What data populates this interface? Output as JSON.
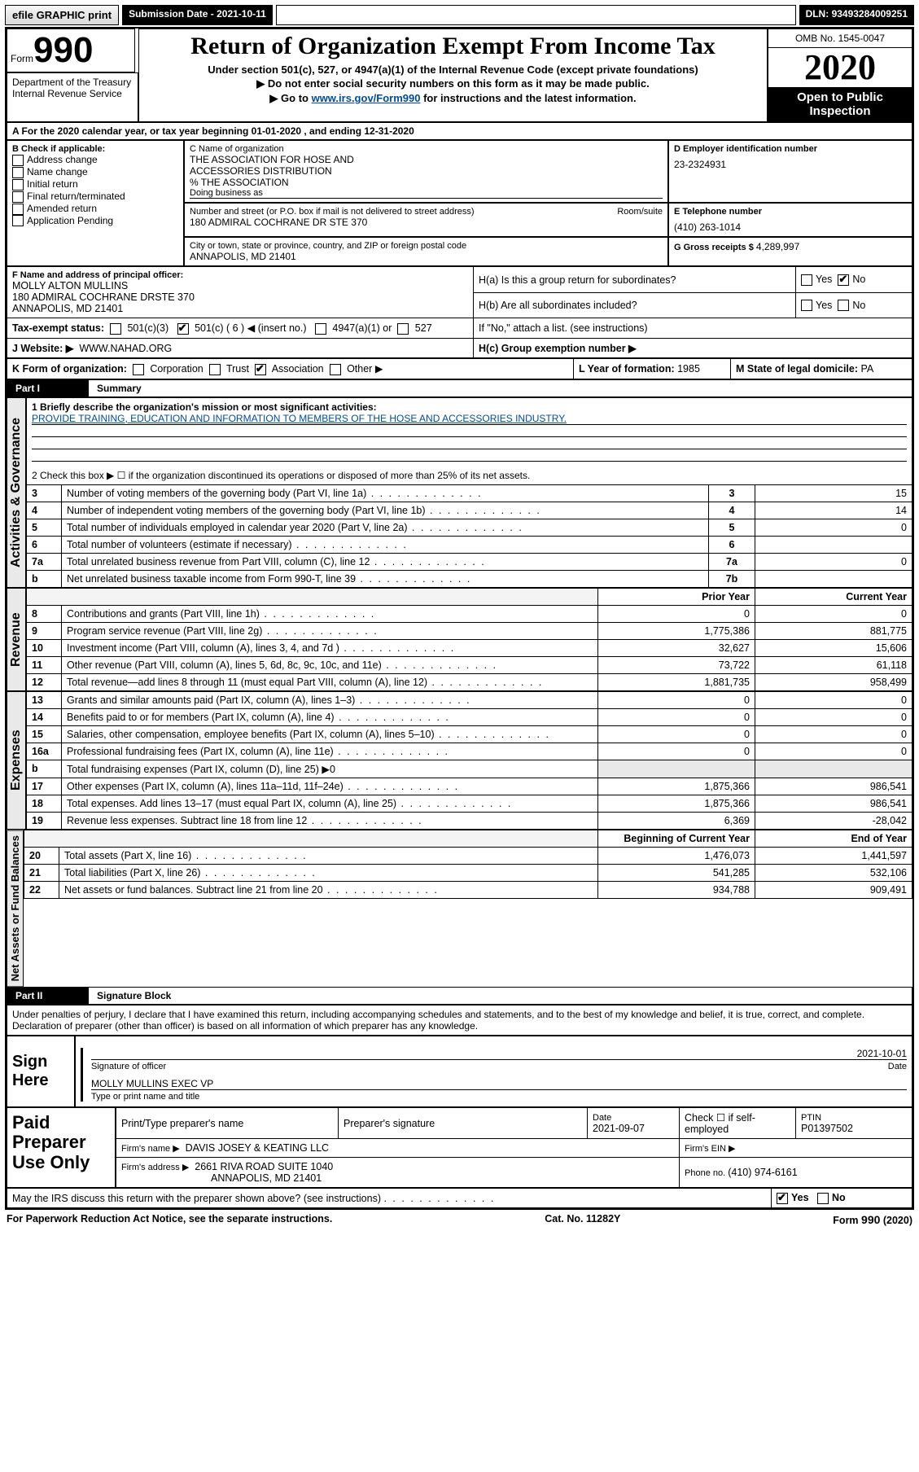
{
  "topbar": {
    "efile": "efile GRAPHIC print",
    "submission_label": "Submission Date - ",
    "submission_date": "2021-10-11",
    "dln_label": "DLN: ",
    "dln": "93493284009251"
  },
  "header": {
    "form_prefix": "Form",
    "form_number": "990",
    "title": "Return of Organization Exempt From Income Tax",
    "subtitle": "Under section 501(c), 527, or 4947(a)(1) of the Internal Revenue Code (except private foundations)",
    "line1": "▶ Do not enter social security numbers on this form as it may be made public.",
    "line2_prefix": "▶ Go to ",
    "line2_link": "www.irs.gov/Form990",
    "line2_suffix": " for instructions and the latest information.",
    "omb": "OMB No. 1545-0047",
    "year": "2020",
    "open": "Open to Public Inspection",
    "dept1": "Department of the Treasury",
    "dept2": "Internal Revenue Service"
  },
  "section_a": {
    "text": "A For the 2020 calendar year, or tax year beginning 01-01-2020    , and ending 12-31-2020"
  },
  "box_b": {
    "label": "B Check if applicable:",
    "items": [
      "Address change",
      "Name change",
      "Initial return",
      "Final return/terminated",
      "Amended return",
      "Application Pending"
    ]
  },
  "box_c": {
    "name_label": "C Name of organization",
    "name1": "THE ASSOCIATION FOR HOSE AND",
    "name2": "ACCESSORIES DISTRIBUTION",
    "care_of": "% THE ASSOCIATION",
    "dba_label": "Doing business as",
    "street_label": "Number and street (or P.O. box if mail is not delivered to street address)",
    "room_label": "Room/suite",
    "street": "180 ADMIRAL COCHRANE DR STE 370",
    "city_label": "City or town, state or province, country, and ZIP or foreign postal code",
    "city": "ANNAPOLIS, MD  21401"
  },
  "box_d": {
    "label": "D Employer identification number",
    "ein": "23-2324931"
  },
  "box_e": {
    "label": "E Telephone number",
    "phone": "(410) 263-1014"
  },
  "box_g": {
    "label": "G Gross receipts $ ",
    "amount": "4,289,997"
  },
  "box_f": {
    "label": "F Name and address of principal officer:",
    "name": "MOLLY ALTON MULLINS",
    "addr1": "180 ADMIRAL COCHRANE DRSTE 370",
    "addr2": "ANNAPOLIS, MD  21401"
  },
  "box_h": {
    "ha": "H(a)  Is this a group return for subordinates?",
    "hb": "H(b)  Are all subordinates included?",
    "hb_note": "If \"No,\" attach a list. (see instructions)",
    "hc": "H(c)  Group exemption number ▶",
    "yes": "Yes",
    "no": "No"
  },
  "tax_exempt": {
    "label": "Tax-exempt status:",
    "c3": "501(c)(3)",
    "c_insert": "501(c) ( 6 ) ◀ (insert no.)",
    "a4947": "4947(a)(1) or",
    "s527": "527"
  },
  "website": {
    "label": "J   Website: ▶",
    "url": "WWW.NAHAD.ORG"
  },
  "box_k": {
    "label": "K Form of organization:",
    "opts": [
      "Corporation",
      "Trust",
      "Association",
      "Other ▶"
    ],
    "checked_index": 2
  },
  "box_l": {
    "label": "L Year of formation: ",
    "val": "1985"
  },
  "box_m": {
    "label": "M State of legal domicile: ",
    "val": "PA"
  },
  "part1": {
    "header_num": "Part I",
    "header_title": "Summary",
    "side_label": "Activities & Governance",
    "line1_label": "1  Briefly describe the organization's mission or most significant activities:",
    "mission": "PROVIDE TRAINING, EDUCATION AND INFORMATION TO MEMBERS OF THE HOSE AND ACCESSORIES INDUSTRY.",
    "line2": "2   Check this box ▶ ☐  if the organization discontinued its operations or disposed of more than 25% of its net assets.",
    "rows": [
      {
        "n": "3",
        "label": "Number of voting members of the governing body (Part VI, line 1a)",
        "box": "3",
        "val": "15"
      },
      {
        "n": "4",
        "label": "Number of independent voting members of the governing body (Part VI, line 1b)",
        "box": "4",
        "val": "14"
      },
      {
        "n": "5",
        "label": "Total number of individuals employed in calendar year 2020 (Part V, line 2a)",
        "box": "5",
        "val": "0"
      },
      {
        "n": "6",
        "label": "Total number of volunteers (estimate if necessary)",
        "box": "6",
        "val": ""
      },
      {
        "n": "7a",
        "label": "Total unrelated business revenue from Part VIII, column (C), line 12",
        "box": "7a",
        "val": "0"
      },
      {
        "n": "b",
        "label": "Net unrelated business taxable income from Form 990-T, line 39",
        "box": "7b",
        "val": ""
      }
    ]
  },
  "revenue": {
    "side_label": "Revenue",
    "header_prior": "Prior Year",
    "header_current": "Current Year",
    "rows": [
      {
        "n": "8",
        "label": "Contributions and grants (Part VIII, line 1h)",
        "prior": "0",
        "curr": "0"
      },
      {
        "n": "9",
        "label": "Program service revenue (Part VIII, line 2g)",
        "prior": "1,775,386",
        "curr": "881,775"
      },
      {
        "n": "10",
        "label": "Investment income (Part VIII, column (A), lines 3, 4, and 7d )",
        "prior": "32,627",
        "curr": "15,606"
      },
      {
        "n": "11",
        "label": "Other revenue (Part VIII, column (A), lines 5, 6d, 8c, 9c, 10c, and 11e)",
        "prior": "73,722",
        "curr": "61,118"
      },
      {
        "n": "12",
        "label": "Total revenue—add lines 8 through 11 (must equal Part VIII, column (A), line 12)",
        "prior": "1,881,735",
        "curr": "958,499"
      }
    ]
  },
  "expenses": {
    "side_label": "Expenses",
    "rows": [
      {
        "n": "13",
        "label": "Grants and similar amounts paid (Part IX, column (A), lines 1–3)",
        "prior": "0",
        "curr": "0"
      },
      {
        "n": "14",
        "label": "Benefits paid to or for members (Part IX, column (A), line 4)",
        "prior": "0",
        "curr": "0"
      },
      {
        "n": "15",
        "label": "Salaries, other compensation, employee benefits (Part IX, column (A), lines 5–10)",
        "prior": "0",
        "curr": "0"
      },
      {
        "n": "16a",
        "label": "Professional fundraising fees (Part IX, column (A), line 11e)",
        "prior": "0",
        "curr": "0"
      },
      {
        "n": "b",
        "label": "Total fundraising expenses (Part IX, column (D), line 25) ▶0",
        "prior": "",
        "curr": ""
      },
      {
        "n": "17",
        "label": "Other expenses (Part IX, column (A), lines 11a–11d, 11f–24e)",
        "prior": "1,875,366",
        "curr": "986,541"
      },
      {
        "n": "18",
        "label": "Total expenses. Add lines 13–17 (must equal Part IX, column (A), line 25)",
        "prior": "1,875,366",
        "curr": "986,541"
      },
      {
        "n": "19",
        "label": "Revenue less expenses. Subtract line 18 from line 12",
        "prior": "6,369",
        "curr": "-28,042"
      }
    ]
  },
  "netassets": {
    "side_label": "Net Assets or Fund Balances",
    "header_begin": "Beginning of Current Year",
    "header_end": "End of Year",
    "rows": [
      {
        "n": "20",
        "label": "Total assets (Part X, line 16)",
        "prior": "1,476,073",
        "curr": "1,441,597"
      },
      {
        "n": "21",
        "label": "Total liabilities (Part X, line 26)",
        "prior": "541,285",
        "curr": "532,106"
      },
      {
        "n": "22",
        "label": "Net assets or fund balances. Subtract line 21 from line 20",
        "prior": "934,788",
        "curr": "909,491"
      }
    ]
  },
  "part2": {
    "header_num": "Part II",
    "header_title": "Signature Block",
    "penalty": "Under penalties of perjury, I declare that I have examined this return, including accompanying schedules and statements, and to the best of my knowledge and belief, it is true, correct, and complete. Declaration of preparer (other than officer) is based on all information of which preparer has any knowledge."
  },
  "sign_here": {
    "label": "Sign Here",
    "sig_officer": "Signature of officer",
    "date_label": "Date",
    "date": "2021-10-01",
    "name": "MOLLY MULLINS  EXEC VP",
    "name_label": "Type or print name and title"
  },
  "paid_preparer": {
    "label": "Paid Preparer Use Only",
    "col1": "Print/Type preparer's name",
    "col2": "Preparer's signature",
    "col3": "Date",
    "date": "2021-09-07",
    "check_label": "Check ☐ if self-employed",
    "ptin_label": "PTIN",
    "ptin": "P01397502",
    "firm_name_label": "Firm's name    ▶",
    "firm_name": "DAVIS JOSEY & KEATING LLC",
    "firm_ein_label": "Firm's EIN ▶",
    "firm_addr_label": "Firm's address ▶",
    "firm_addr1": "2661 RIVA ROAD SUITE 1040",
    "firm_addr2": "ANNAPOLIS, MD  21401",
    "phone_label": "Phone no. ",
    "phone": "(410) 974-6161"
  },
  "discuss": {
    "text": "May the IRS discuss this return with the preparer shown above? (see instructions)",
    "yes": "Yes",
    "no": "No"
  },
  "footer": {
    "left": "For Paperwork Reduction Act Notice, see the separate instructions.",
    "center": "Cat. No. 11282Y",
    "right": "Form 990 (2020)"
  },
  "colors": {
    "link": "#004b9b",
    "bg": "#ffffff",
    "border": "#000000",
    "sidebar_bg": "#e9e9e9"
  }
}
